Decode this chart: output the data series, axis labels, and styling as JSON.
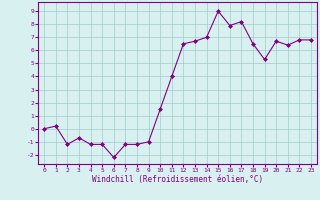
{
  "x": [
    0,
    1,
    2,
    3,
    4,
    5,
    6,
    7,
    8,
    9,
    10,
    11,
    12,
    13,
    14,
    15,
    16,
    17,
    18,
    19,
    20,
    21,
    22,
    23
  ],
  "y": [
    0.0,
    0.2,
    -1.2,
    -0.7,
    -1.2,
    -1.2,
    -2.2,
    -1.2,
    -1.2,
    -1.0,
    1.5,
    4.0,
    6.5,
    6.7,
    7.0,
    9.0,
    7.9,
    8.2,
    6.5,
    5.3,
    6.7,
    6.4,
    6.8,
    6.8
  ],
  "xlim": [
    -0.5,
    23.5
  ],
  "ylim": [
    -2.7,
    9.7
  ],
  "yticks": [
    -2,
    -1,
    0,
    1,
    2,
    3,
    4,
    5,
    6,
    7,
    8,
    9
  ],
  "xticks": [
    0,
    1,
    2,
    3,
    4,
    5,
    6,
    7,
    8,
    9,
    10,
    11,
    12,
    13,
    14,
    15,
    16,
    17,
    18,
    19,
    20,
    21,
    22,
    23
  ],
  "xlabel": "Windchill (Refroidissement éolien,°C)",
  "line_color": "#800080",
  "marker": "D",
  "marker_size": 2,
  "bg_color": "#d8f0f0",
  "grid_color": "#a0cccc",
  "xlabel_color": "#800080",
  "tick_color": "#800080",
  "spine_color": "#800080",
  "tick_fontsize": 4.5,
  "xlabel_fontsize": 5.5,
  "line_width": 0.8
}
